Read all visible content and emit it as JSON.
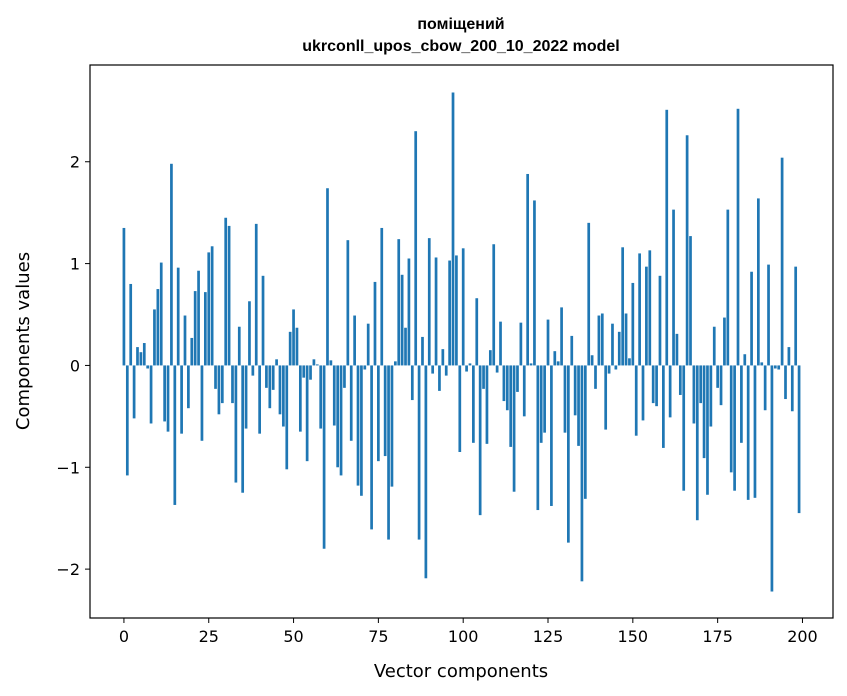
{
  "chart_data": {
    "type": "bar",
    "title": "поміщений",
    "subtitle": "ukrconll_upos_cbow_200_10_2022 model",
    "xlabel": "Vector components",
    "ylabel": "Components values",
    "xlim": [
      -10,
      209
    ],
    "ylim": [
      -2.48,
      2.95
    ],
    "xticks": [
      0,
      25,
      50,
      75,
      100,
      125,
      150,
      175,
      200
    ],
    "yticks": [
      -2,
      -1,
      0,
      1,
      2
    ],
    "ytick_labels": [
      "−2",
      "−1",
      "0",
      "1",
      "2"
    ],
    "grid": false,
    "bar_color": "#1f77b4",
    "values": [
      1.35,
      -1.08,
      0.8,
      -0.52,
      0.18,
      0.13,
      0.22,
      -0.03,
      -0.57,
      0.55,
      0.75,
      1.01,
      -0.55,
      -0.65,
      1.98,
      -1.37,
      0.96,
      -0.67,
      0.49,
      -0.42,
      0.27,
      0.73,
      0.93,
      -0.74,
      0.72,
      1.11,
      1.17,
      -0.23,
      -0.48,
      -0.37,
      1.45,
      1.37,
      -0.37,
      -1.15,
      0.38,
      -1.25,
      -0.62,
      0.63,
      -0.1,
      1.39,
      -0.67,
      0.88,
      -0.22,
      -0.42,
      -0.24,
      0.06,
      -0.48,
      -0.6,
      -1.02,
      0.33,
      0.55,
      0.37,
      -0.65,
      -0.12,
      -0.94,
      -0.14,
      0.06,
      0.01,
      -0.62,
      -1.8,
      1.74,
      0.05,
      -0.59,
      -1.0,
      -1.08,
      -0.22,
      1.23,
      -0.74,
      0.49,
      -1.18,
      -1.28,
      -0.04,
      0.41,
      -1.61,
      0.82,
      -0.94,
      1.35,
      -0.89,
      -1.71,
      -1.19,
      0.04,
      1.24,
      0.89,
      0.37,
      1.05,
      -0.34,
      2.3,
      -1.71,
      0.28,
      -2.09,
      1.25,
      -0.08,
      1.06,
      -0.25,
      0.16,
      -0.1,
      1.03,
      2.68,
      1.08,
      -0.85,
      1.15,
      -0.06,
      0.02,
      -0.76,
      0.66,
      -1.47,
      -0.23,
      -0.77,
      0.15,
      1.19,
      -0.07,
      0.43,
      -0.35,
      -0.44,
      -0.8,
      -1.24,
      -0.26,
      0.42,
      -0.5,
      1.88,
      0.02,
      1.62,
      -1.42,
      -0.76,
      -0.66,
      0.45,
      -1.38,
      0.14,
      0.04,
      0.57,
      -0.66,
      -1.74,
      0.29,
      -0.49,
      -0.79,
      -2.12,
      -1.31,
      1.4,
      0.1,
      -0.23,
      0.49,
      0.51,
      -0.63,
      -0.08,
      0.41,
      -0.04,
      0.33,
      1.16,
      0.51,
      0.07,
      0.81,
      -0.69,
      1.1,
      -0.54,
      0.97,
      1.13,
      -0.37,
      -0.4,
      0.88,
      -0.81,
      2.51,
      -0.51,
      1.53,
      0.31,
      -0.29,
      -1.23,
      2.26,
      1.27,
      -0.57,
      -1.52,
      -0.37,
      -0.91,
      -1.27,
      -0.6,
      0.38,
      -0.22,
      -0.39,
      0.47,
      1.53,
      -1.05,
      -1.23,
      2.52,
      -0.76,
      0.11,
      -1.32,
      0.92,
      -1.3,
      1.64,
      0.03,
      -0.44,
      0.99,
      -2.22,
      -0.03,
      -0.04,
      2.04,
      -0.33,
      0.18,
      -0.45,
      0.97,
      -1.45
    ]
  }
}
